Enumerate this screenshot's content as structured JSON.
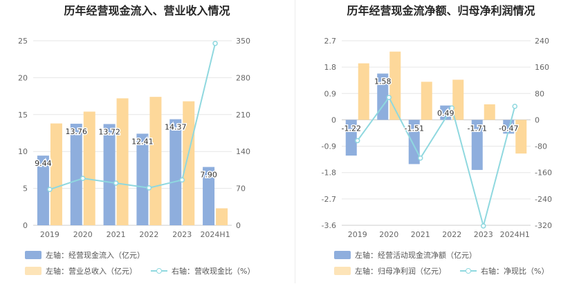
{
  "charts": [
    {
      "id": "left",
      "title": "历年经营现金流入、营业收入情况",
      "legend": {
        "bar1": "左轴：经营现金流入（亿元）",
        "bar2": "左轴：营业总收入（亿元）",
        "line": "右轴：营收现金比（%）"
      }
    },
    {
      "id": "right",
      "title": "历年经营现金流净额、归母净利润情况",
      "legend": {
        "bar1": "左轴：经营活动现金流净额（亿元）",
        "bar2": "左轴：归母净利润（亿元）",
        "line": "右轴：净现比（%）"
      }
    }
  ],
  "colors": {
    "bar1": "#8eaedd",
    "bar2": "#fdd89a",
    "line": "#8fd8df",
    "grid": "#e6e6e6",
    "axis": "#cccccc"
  },
  "chart_data": [
    {
      "type": "bar",
      "title": "历年经营现金流入、营业收入情况",
      "categories": [
        "2019",
        "2020",
        "2021",
        "2022",
        "2023",
        "2024H1"
      ],
      "left_axis": {
        "min": 0,
        "max": 25,
        "ticks": [
          0,
          5,
          10,
          15,
          20,
          25
        ]
      },
      "right_axis": {
        "min": 0,
        "max": 350,
        "ticks": [
          0,
          70,
          140,
          210,
          280,
          350
        ]
      },
      "series": [
        {
          "name": "经营现金流入（亿元）",
          "axis": "left",
          "kind": "bar",
          "values": [
            9.44,
            13.76,
            13.72,
            12.41,
            14.37,
            7.9
          ],
          "labels": [
            "9.44",
            "13.76",
            "13.72",
            "12.41",
            "14.37",
            "7.90"
          ]
        },
        {
          "name": "营业总收入（亿元）",
          "axis": "left",
          "kind": "bar",
          "values": [
            13.8,
            15.4,
            17.2,
            17.4,
            16.8,
            2.3
          ]
        },
        {
          "name": "营收现金比（%）",
          "axis": "right",
          "kind": "line",
          "values": [
            68,
            89,
            80,
            71,
            86,
            345
          ]
        }
      ]
    },
    {
      "type": "bar",
      "title": "历年经营现金流净额、归母净利润情况",
      "categories": [
        "2019",
        "2020",
        "2021",
        "2022",
        "2023",
        "2024H1"
      ],
      "left_axis": {
        "min": -3.6,
        "max": 2.7,
        "ticks": [
          -3.6,
          -2.7,
          -1.8,
          -0.9,
          0,
          0.9,
          1.8,
          2.7
        ]
      },
      "right_axis": {
        "min": -320,
        "max": 240,
        "ticks": [
          -320,
          -240,
          -160,
          -80,
          0,
          80,
          160,
          240
        ]
      },
      "series": [
        {
          "name": "经营活动现金流净额（亿元）",
          "axis": "left",
          "kind": "bar",
          "values": [
            -1.22,
            1.58,
            -1.51,
            0.49,
            -1.71,
            -0.47
          ],
          "labels": [
            "-1.22",
            "1.58",
            "-1.51",
            "0.49",
            "-1.71",
            "-0.47"
          ]
        },
        {
          "name": "归母净利润（亿元）",
          "axis": "left",
          "kind": "bar",
          "values": [
            1.93,
            2.33,
            1.3,
            1.37,
            0.53,
            -1.15
          ]
        },
        {
          "name": "净现比（%）",
          "axis": "right",
          "kind": "line",
          "values": [
            -63,
            68,
            -116,
            36,
            -322,
            41
          ]
        }
      ]
    }
  ]
}
